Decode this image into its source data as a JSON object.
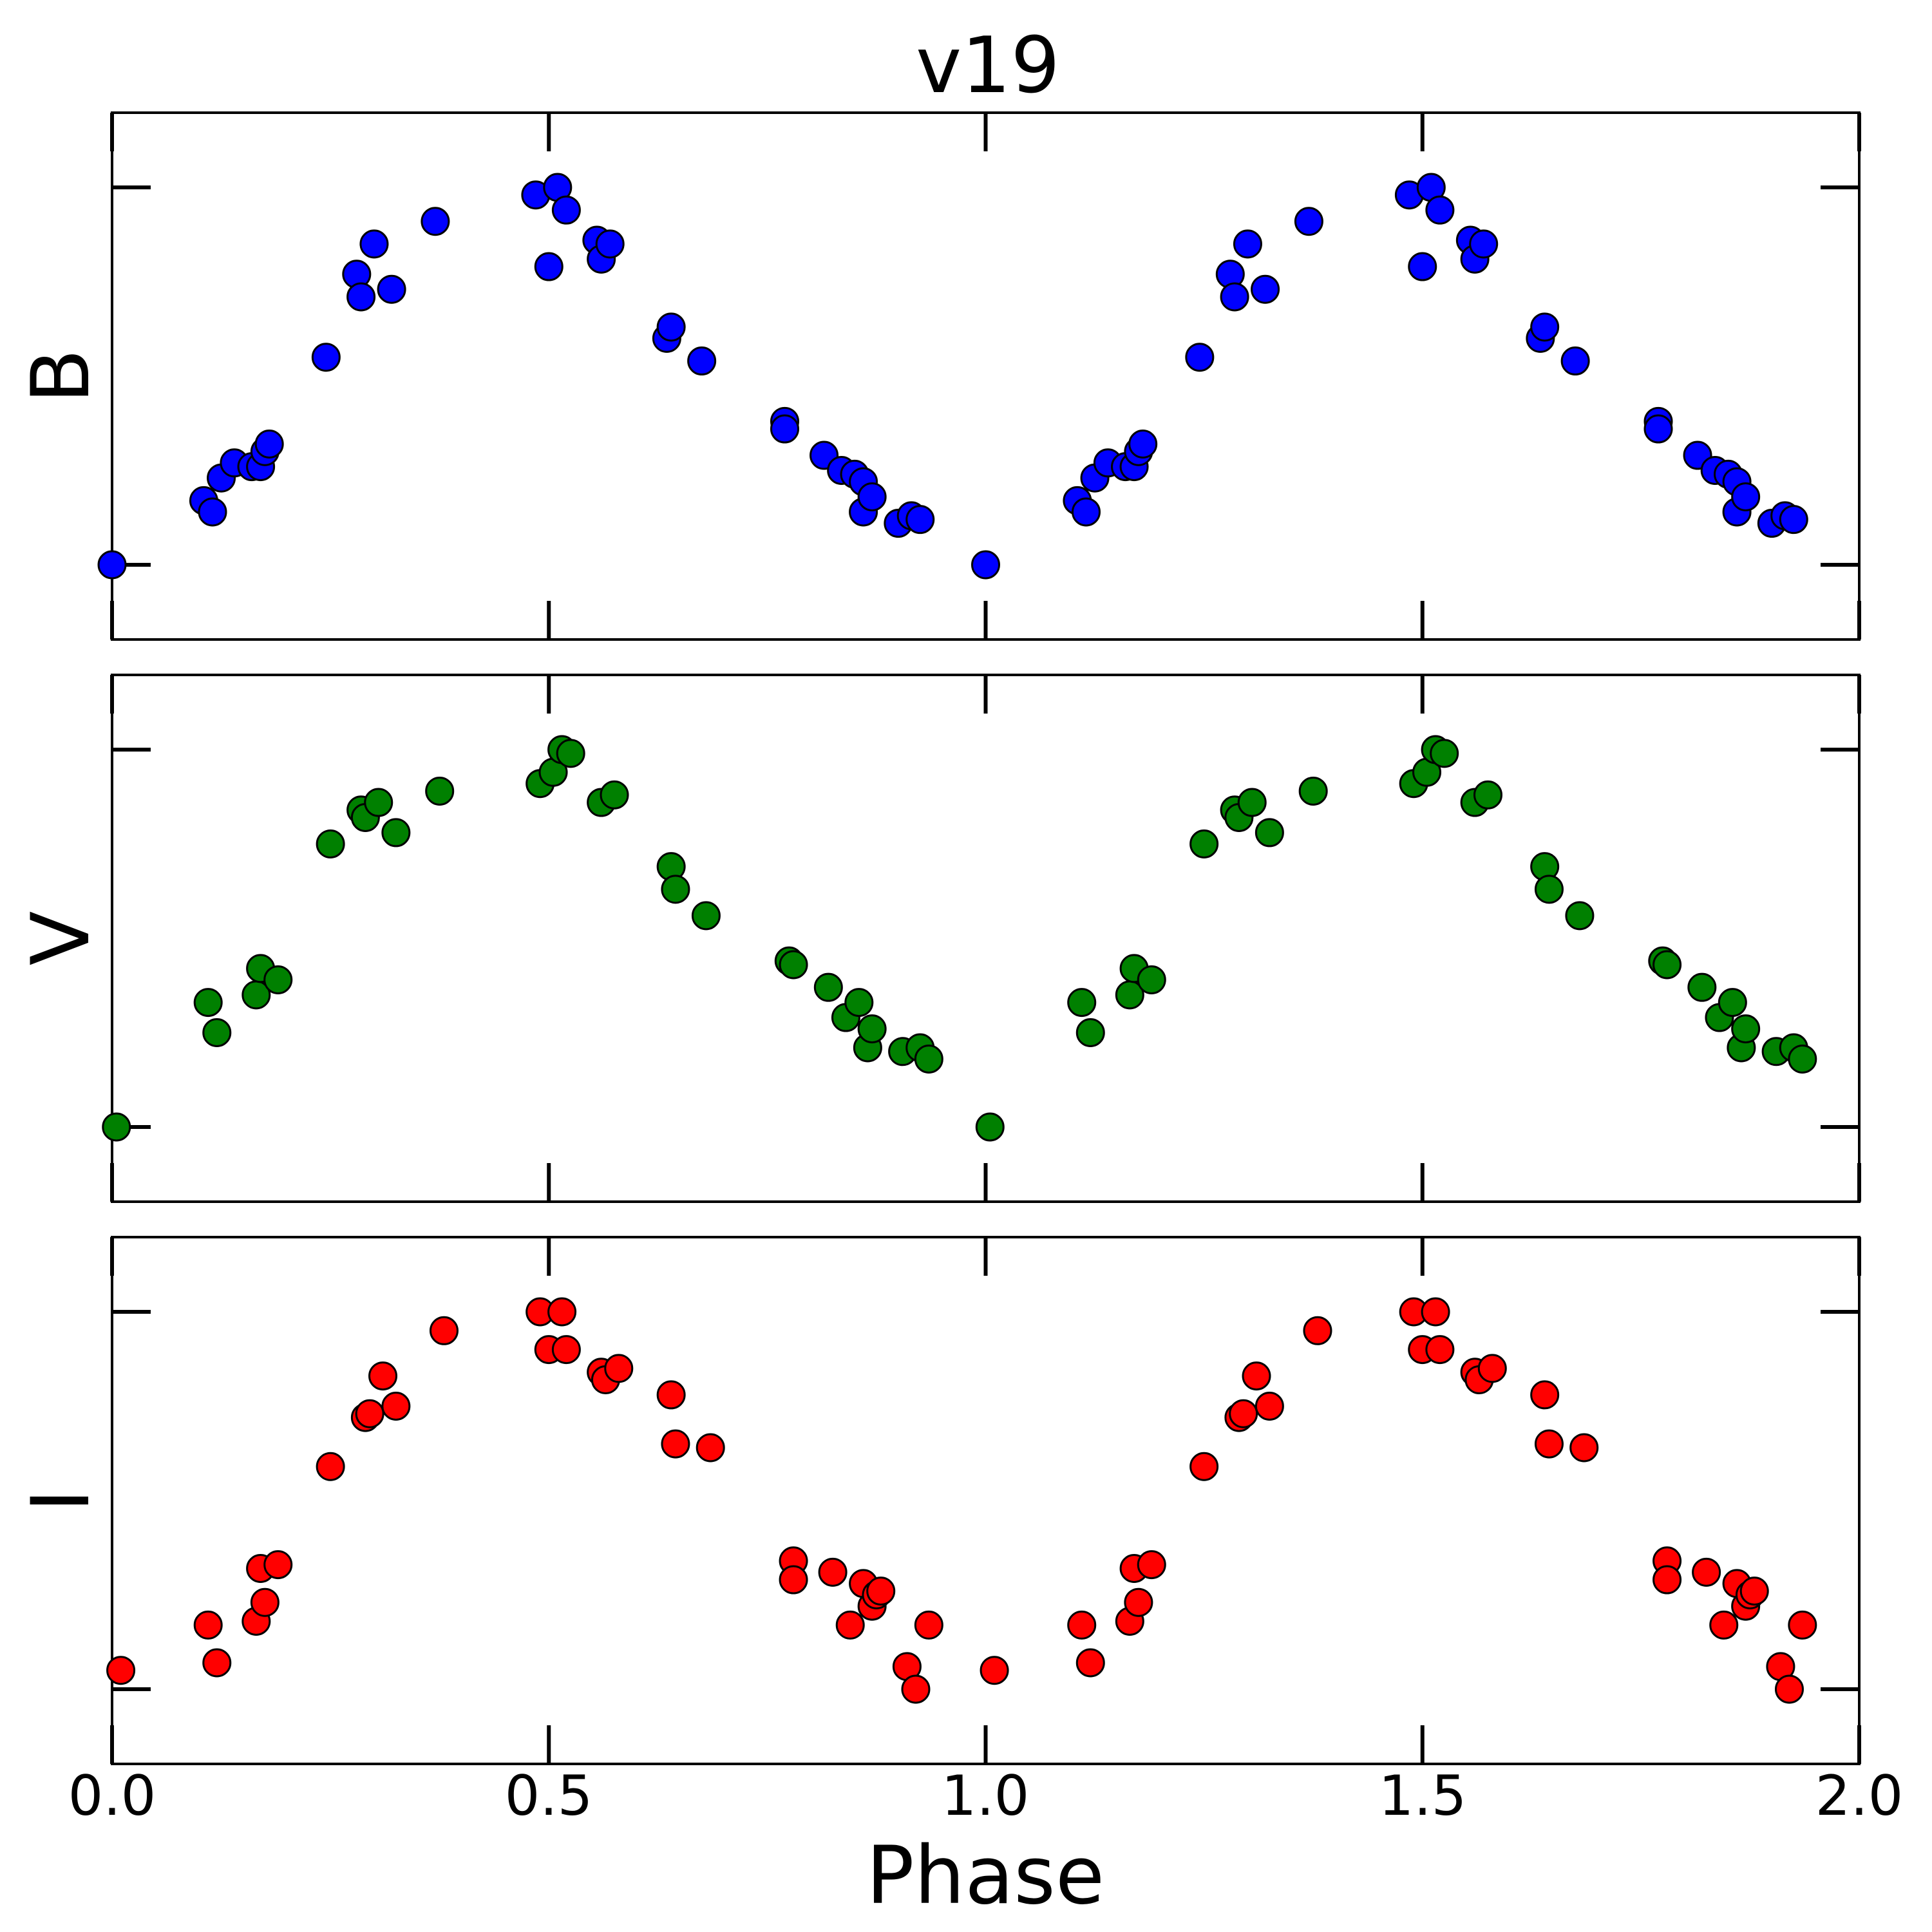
{
  "chart_data": {
    "type": "scatter",
    "title": "v19",
    "xlabel": "Phase",
    "xlim": [
      0.0,
      2.0
    ],
    "xticks": [
      "0.0",
      "0.5",
      "1.0",
      "1.5",
      "2.0"
    ],
    "shared_x": true,
    "phase_values": [
      0.0,
      0.105,
      0.115,
      0.125,
      0.14,
      0.16,
      0.17,
      0.175,
      0.18,
      0.245,
      0.28,
      0.285,
      0.3,
      0.32,
      0.37,
      0.485,
      0.5,
      0.51,
      0.52,
      0.555,
      0.56,
      0.57,
      0.635,
      0.64,
      0.675,
      0.77,
      0.815,
      0.835,
      0.85,
      0.86,
      0.865,
      0.87,
      0.9,
      0.915,
      0.925
    ],
    "panels": [
      {
        "name": "B",
        "ylabel": "B",
        "color": "#0000ff",
        "series": [
          {
            "x": 0.0,
            "y": 0.0
          },
          {
            "x": 0.105,
            "y": 0.17
          },
          {
            "x": 0.115,
            "y": 0.14
          },
          {
            "x": 0.125,
            "y": 0.23
          },
          {
            "x": 0.14,
            "y": 0.27
          },
          {
            "x": 0.16,
            "y": 0.26
          },
          {
            "x": 0.17,
            "y": 0.26
          },
          {
            "x": 0.175,
            "y": 0.3
          },
          {
            "x": 0.18,
            "y": 0.32
          },
          {
            "x": 0.245,
            "y": 0.55
          },
          {
            "x": 0.28,
            "y": 0.77
          },
          {
            "x": 0.285,
            "y": 0.71
          },
          {
            "x": 0.3,
            "y": 0.85
          },
          {
            "x": 0.32,
            "y": 0.73
          },
          {
            "x": 0.37,
            "y": 0.91
          },
          {
            "x": 0.485,
            "y": 0.98
          },
          {
            "x": 0.5,
            "y": 0.79
          },
          {
            "x": 0.51,
            "y": 1.0
          },
          {
            "x": 0.52,
            "y": 0.94
          },
          {
            "x": 0.555,
            "y": 0.86
          },
          {
            "x": 0.56,
            "y": 0.81
          },
          {
            "x": 0.57,
            "y": 0.85
          },
          {
            "x": 0.635,
            "y": 0.6
          },
          {
            "x": 0.64,
            "y": 0.63
          },
          {
            "x": 0.675,
            "y": 0.54
          },
          {
            "x": 0.77,
            "y": 0.38
          },
          {
            "x": 0.77,
            "y": 0.36
          },
          {
            "x": 0.815,
            "y": 0.29
          },
          {
            "x": 0.835,
            "y": 0.25
          },
          {
            "x": 0.85,
            "y": 0.24
          },
          {
            "x": 0.86,
            "y": 0.22
          },
          {
            "x": 0.86,
            "y": 0.14
          },
          {
            "x": 0.87,
            "y": 0.18
          },
          {
            "x": 0.9,
            "y": 0.11
          },
          {
            "x": 0.915,
            "y": 0.13
          },
          {
            "x": 0.925,
            "y": 0.12
          }
        ]
      },
      {
        "name": "V",
        "ylabel": "V",
        "color": "#008000",
        "series": [
          {
            "x": 0.005,
            "y": 0.0
          },
          {
            "x": 0.11,
            "y": 0.33
          },
          {
            "x": 0.12,
            "y": 0.25
          },
          {
            "x": 0.165,
            "y": 0.35
          },
          {
            "x": 0.17,
            "y": 0.42
          },
          {
            "x": 0.19,
            "y": 0.39
          },
          {
            "x": 0.25,
            "y": 0.75
          },
          {
            "x": 0.285,
            "y": 0.84
          },
          {
            "x": 0.29,
            "y": 0.82
          },
          {
            "x": 0.305,
            "y": 0.86
          },
          {
            "x": 0.325,
            "y": 0.78
          },
          {
            "x": 0.375,
            "y": 0.89
          },
          {
            "x": 0.49,
            "y": 0.91
          },
          {
            "x": 0.505,
            "y": 0.94
          },
          {
            "x": 0.515,
            "y": 1.0
          },
          {
            "x": 0.525,
            "y": 0.99
          },
          {
            "x": 0.56,
            "y": 0.86
          },
          {
            "x": 0.575,
            "y": 0.88
          },
          {
            "x": 0.64,
            "y": 0.69
          },
          {
            "x": 0.645,
            "y": 0.63
          },
          {
            "x": 0.68,
            "y": 0.56
          },
          {
            "x": 0.775,
            "y": 0.44
          },
          {
            "x": 0.78,
            "y": 0.43
          },
          {
            "x": 0.82,
            "y": 0.37
          },
          {
            "x": 0.84,
            "y": 0.29
          },
          {
            "x": 0.855,
            "y": 0.33
          },
          {
            "x": 0.865,
            "y": 0.21
          },
          {
            "x": 0.87,
            "y": 0.26
          },
          {
            "x": 0.905,
            "y": 0.2
          },
          {
            "x": 0.925,
            "y": 0.21
          },
          {
            "x": 0.935,
            "y": 0.18
          }
        ]
      },
      {
        "name": "I",
        "ylabel": "I",
        "color": "#ff0000",
        "series": [
          {
            "x": 0.01,
            "y": 0.05
          },
          {
            "x": 0.11,
            "y": 0.17
          },
          {
            "x": 0.12,
            "y": 0.07
          },
          {
            "x": 0.165,
            "y": 0.18
          },
          {
            "x": 0.17,
            "y": 0.32
          },
          {
            "x": 0.175,
            "y": 0.23
          },
          {
            "x": 0.19,
            "y": 0.33
          },
          {
            "x": 0.25,
            "y": 0.59
          },
          {
            "x": 0.29,
            "y": 0.72
          },
          {
            "x": 0.295,
            "y": 0.73
          },
          {
            "x": 0.31,
            "y": 0.83
          },
          {
            "x": 0.325,
            "y": 0.75
          },
          {
            "x": 0.38,
            "y": 0.95
          },
          {
            "x": 0.49,
            "y": 1.0
          },
          {
            "x": 0.5,
            "y": 0.9
          },
          {
            "x": 0.515,
            "y": 1.0
          },
          {
            "x": 0.52,
            "y": 0.9
          },
          {
            "x": 0.56,
            "y": 0.84
          },
          {
            "x": 0.565,
            "y": 0.82
          },
          {
            "x": 0.58,
            "y": 0.85
          },
          {
            "x": 0.64,
            "y": 0.78
          },
          {
            "x": 0.645,
            "y": 0.65
          },
          {
            "x": 0.685,
            "y": 0.64
          },
          {
            "x": 0.78,
            "y": 0.34
          },
          {
            "x": 0.78,
            "y": 0.29
          },
          {
            "x": 0.825,
            "y": 0.31
          },
          {
            "x": 0.845,
            "y": 0.17
          },
          {
            "x": 0.86,
            "y": 0.28
          },
          {
            "x": 0.87,
            "y": 0.22
          },
          {
            "x": 0.875,
            "y": 0.25
          },
          {
            "x": 0.88,
            "y": 0.26
          },
          {
            "x": 0.91,
            "y": 0.06
          },
          {
            "x": 0.92,
            "y": 0.0
          },
          {
            "x": 0.935,
            "y": 0.17
          }
        ]
      }
    ]
  }
}
